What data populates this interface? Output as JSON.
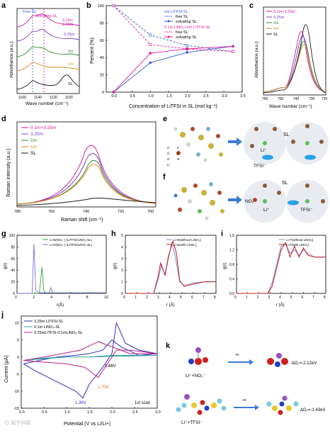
{
  "panels": {
    "a": {
      "label": "a",
      "xlabel": "Wave number (cm⁻¹)",
      "ylabel": "Absorbance (a.u.)",
      "xticks": [
        "1160",
        "1140",
        "1120",
        "1100"
      ],
      "annot_free": "Free SL",
      "annot_solv": "Solvating SL",
      "curves": [
        "0.1m+\n3.25m",
        "3.25m",
        "2m",
        "1m",
        "SL"
      ],
      "curve_colors": [
        "#d21a9e",
        "#7b3fc4",
        "#2e8b2e",
        "#e08a1a",
        "#1a1a1a"
      ]
    },
    "b": {
      "label": "b",
      "xlabel": "Concentration of LiTFSI in SL (mol kg⁻¹)",
      "ylabel": "Percent (%)",
      "legend_title1": "xm LiTFSI-SL",
      "legend_title2": "0.1m LiNO₃+xm LiTFSI-SL",
      "legend_free": "free SL",
      "legend_solv": "solvating SL",
      "xticks": [
        "0.0",
        "0.5",
        "1.0",
        "1.5",
        "2.0",
        "2.5",
        "3.0",
        "3.5"
      ],
      "yticks": [
        "0",
        "20",
        "40",
        "60",
        "80",
        "100"
      ]
    },
    "c": {
      "label": "c",
      "xlabel": "Wave number (cm⁻¹)",
      "ylabel": "Absorbance (a.u.)",
      "xticks": [
        "760",
        "750",
        "740",
        "730",
        "720"
      ],
      "legend": [
        "0.1m+3.25m",
        "3.25m",
        "2m",
        "1m",
        "SL"
      ]
    },
    "d": {
      "label": "d",
      "xlabel": "Raman shift (cm⁻¹)",
      "ylabel": "Raman intensity (a.u.)",
      "xticks": [
        "780",
        "760",
        "740",
        "720",
        "700"
      ],
      "legend": [
        "0.1m+3.25m",
        "3.25m",
        "2m",
        "1m",
        "SL"
      ]
    },
    "e": {
      "label": "e",
      "sl": "SL",
      "li": "Li⁺",
      "tfsi": "TFSI⁻",
      "elements": [
        "H",
        "F",
        "S",
        "C",
        "O",
        "N",
        "Li"
      ]
    },
    "f": {
      "label": "f",
      "sl": "SL",
      "no3": "NO₃⁻",
      "li": "Li⁺",
      "tfsi": "TFSI⁻"
    },
    "g": {
      "label": "g",
      "xlabel": "r(Å)",
      "ylabel": "g(r)",
      "legend": [
        "Li-N(NO₃⁻) (LiTFSI/LiNO₃-SL)",
        "Li-O(NO₃⁻) (LiTFSI/LiNO₃-SL)"
      ],
      "xticks": [
        "0",
        "2",
        "4",
        "6",
        "8",
        "10"
      ],
      "yticks": [
        "0",
        "20",
        "40",
        "60",
        "80",
        "100"
      ]
    },
    "h": {
      "label": "h",
      "xlabel": "r (Å)",
      "ylabel": "g(r)",
      "legend": [
        "Li-N(without LiNO₃)",
        "Li-N(with LiNO₃)"
      ],
      "xticks": [
        "0",
        "1",
        "2",
        "3",
        "4",
        "5",
        "6",
        "7",
        "8"
      ],
      "yticks": [
        "0",
        "1",
        "2",
        "3",
        "4",
        "5"
      ]
    },
    "i": {
      "label": "i",
      "xlabel": "r (Å)",
      "ylabel": "g(r)",
      "legend": [
        "Li-F(without LiNO₃)",
        "Li-F(with LiNO₃)"
      ],
      "xticks": [
        "0",
        "1",
        "2",
        "3",
        "4",
        "5",
        "6",
        "7",
        "8"
      ],
      "yticks": [
        "0.0",
        "0.4",
        "0.8",
        "1.2",
        "1.6"
      ]
    },
    "j": {
      "label": "j",
      "xlabel": "Potential (V vs Li/Li+)",
      "ylabel": "Current (μA)",
      "legend": [
        "3.25m LiTFSI-SL",
        "0.1m LiNO₃-SL",
        "3.25mLiTFSI-0.1mLiNO₃-SL"
      ],
      "annot1": "1.66V",
      "annot2": "1.70V",
      "annot3": "1.36V",
      "scan": "1st scan",
      "xticks": [
        "0.0",
        "0.5",
        "1.0",
        "1.5",
        "2.0",
        "2.5",
        "3.0"
      ],
      "yticks": [
        "-15",
        "-10",
        "-5",
        "0",
        "5",
        "10"
      ]
    },
    "k": {
      "label": "k",
      "mol1": "Li⁺+NO₃⁻",
      "mol2": "Li⁺+TFSI⁻",
      "arrow": "+e",
      "dg1": "ΔG₁=-2.12eV",
      "dg2": "ΔG₂=-1.43eV"
    }
  },
  "chart_data": [
    {
      "panel": "b",
      "type": "line",
      "title": "",
      "xlabel": "Concentration of LiTFSI in SL (mol kg⁻¹)",
      "ylabel": "Percent (%)",
      "xlim": [
        -0.2,
        3.5
      ],
      "ylim": [
        0,
        100
      ],
      "series": [
        {
          "name": "free SL",
          "group": "xm LiTFSI-SL",
          "color": "#3a5ad0",
          "x": [
            0,
            1,
            2,
            3.25
          ],
          "y": [
            100,
            66,
            54,
            47
          ]
        },
        {
          "name": "solvating SL",
          "group": "xm LiTFSI-SL",
          "color": "#3a5ad0",
          "x": [
            0,
            1,
            2,
            3.25
          ],
          "y": [
            0,
            34,
            46,
            53
          ]
        },
        {
          "name": "free SL",
          "group": "0.1m LiNO₃+xm LiTFSI-SL",
          "color": "#e0209a",
          "x": [
            0,
            1,
            2,
            3.25
          ],
          "y": [
            100,
            55,
            50,
            47
          ]
        },
        {
          "name": "solvating SL",
          "group": "0.1m LiNO₃+xm LiTFSI-SL",
          "color": "#e0209a",
          "x": [
            0,
            1,
            2,
            3.25
          ],
          "y": [
            0,
            45,
            50,
            53
          ]
        }
      ]
    },
    {
      "panel": "g",
      "type": "line",
      "xlabel": "r(Å)",
      "ylabel": "g(r)",
      "xlim": [
        0,
        10
      ],
      "ylim": [
        0,
        100
      ],
      "series": [
        {
          "name": "Li-N(NO₃⁻) (LiTFSI/LiNO₃-SL)",
          "color": "#3aa63a",
          "x": [
            0,
            2.5,
            2.8,
            3.0,
            3.2,
            3.4,
            10
          ],
          "y": [
            0,
            0,
            45,
            5,
            1,
            1,
            1
          ]
        },
        {
          "name": "Li-O(NO₃⁻) (LiTFSI/LiNO₃-SL)",
          "color": "#7a70d8",
          "x": [
            0,
            1.7,
            1.9,
            2.1,
            2.4,
            3.6,
            3.8,
            4.0,
            10
          ],
          "y": [
            0,
            0,
            85,
            5,
            1,
            1,
            10,
            1,
            1
          ]
        }
      ]
    },
    {
      "panel": "h",
      "type": "line",
      "xlabel": "r (Å)",
      "ylabel": "g(r)",
      "xlim": [
        0,
        8
      ],
      "ylim": [
        0,
        5
      ],
      "series": [
        {
          "name": "Li-N(without LiNO₃)",
          "color": "#8a8ad0",
          "x": [
            0,
            2.5,
            2.9,
            3.2,
            3.5,
            3.8,
            4.1,
            4.4,
            4.8,
            5.2,
            6,
            7,
            8
          ],
          "y": [
            0,
            0,
            1.2,
            2.5,
            1.5,
            3.0,
            4.4,
            3.2,
            1.0,
            0.7,
            0.9,
            1.0,
            1.0
          ]
        },
        {
          "name": "Li-N(with LiNO₃)",
          "color": "#c02020",
          "x": [
            0,
            2.5,
            2.9,
            3.1,
            3.5,
            3.8,
            4.2,
            4.5,
            4.8,
            5.2,
            6,
            7,
            8
          ],
          "y": [
            0,
            0,
            1.5,
            2.6,
            1.6,
            3.2,
            4.5,
            3.5,
            1.1,
            0.6,
            0.8,
            1.0,
            1.0
          ]
        }
      ]
    },
    {
      "panel": "i",
      "type": "line",
      "xlabel": "r (Å)",
      "ylabel": "g(r)",
      "xlim": [
        0,
        8
      ],
      "ylim": [
        0,
        1.6
      ],
      "series": [
        {
          "name": "Li-F(without LiNO₃)",
          "color": "#8a8ad0",
          "x": [
            0,
            2.8,
            3.2,
            3.6,
            4.0,
            4.4,
            4.8,
            5.2,
            5.6,
            6.0,
            6.4,
            7,
            8
          ],
          "y": [
            0,
            0,
            0.3,
            0.8,
            1.3,
            1.35,
            1.1,
            1.2,
            1.05,
            1.2,
            1.1,
            1.0,
            1.0
          ]
        },
        {
          "name": "Li-F(with LiNO₃)",
          "color": "#c02020",
          "x": [
            0,
            2.8,
            3.2,
            3.6,
            4.0,
            4.4,
            4.8,
            5.2,
            5.6,
            6.0,
            6.4,
            7,
            8
          ],
          "y": [
            0,
            0,
            0.2,
            0.7,
            1.2,
            1.4,
            1.0,
            1.3,
            1.0,
            1.25,
            1.05,
            1.0,
            1.0
          ]
        }
      ]
    },
    {
      "panel": "j",
      "type": "line",
      "xlabel": "Potential (V vs Li/Li+)",
      "ylabel": "Current (μA)",
      "xlim": [
        0,
        3
      ],
      "ylim": [
        -15,
        12
      ],
      "series": [
        {
          "name": "3.25m LiTFSI-SL",
          "color": "#3030c0",
          "x": [
            0.05,
            0.3,
            0.6,
            0.9,
            1.2,
            1.36,
            1.5,
            1.8,
            2.0,
            2.1,
            2.3,
            2.6,
            3.0,
            2.6,
            2.2,
            2.0,
            1.8,
            1.5,
            1.2,
            0.8,
            0.4,
            0.05
          ],
          "y": [
            -2,
            -4,
            -6,
            -8,
            -10,
            -12,
            -8,
            -3,
            1,
            10,
            4,
            2,
            1,
            0.5,
            3,
            5,
            2,
            1,
            0.5,
            0,
            -1,
            -2
          ]
        },
        {
          "name": "0.1m LiNO₃-SL",
          "color": "#30a0a0",
          "x": [
            0.05,
            0.5,
            1.0,
            1.5,
            2.0,
            2.5,
            3.0,
            2.5,
            2.0,
            1.5,
            1.0,
            0.5,
            0.05
          ],
          "y": [
            -1,
            -0.5,
            0,
            0,
            0.5,
            0.5,
            0.5,
            0.3,
            0.2,
            0,
            0,
            -0.3,
            -1
          ]
        },
        {
          "name": "3.25mLiTFSI-0.1mLiNO₃-SL",
          "color": "#c02080",
          "x": [
            0.05,
            0.5,
            1.0,
            1.4,
            1.7,
            1.9,
            2.1,
            2.4,
            3.0,
            2.4,
            2.0,
            1.7,
            1.3,
            0.9,
            0.5,
            0.05
          ],
          "y": [
            -1,
            -1.5,
            -2,
            -3,
            -6,
            -2,
            2,
            2,
            1,
            1,
            3,
            4.5,
            2,
            1,
            0,
            -1
          ]
        }
      ]
    }
  ]
}
